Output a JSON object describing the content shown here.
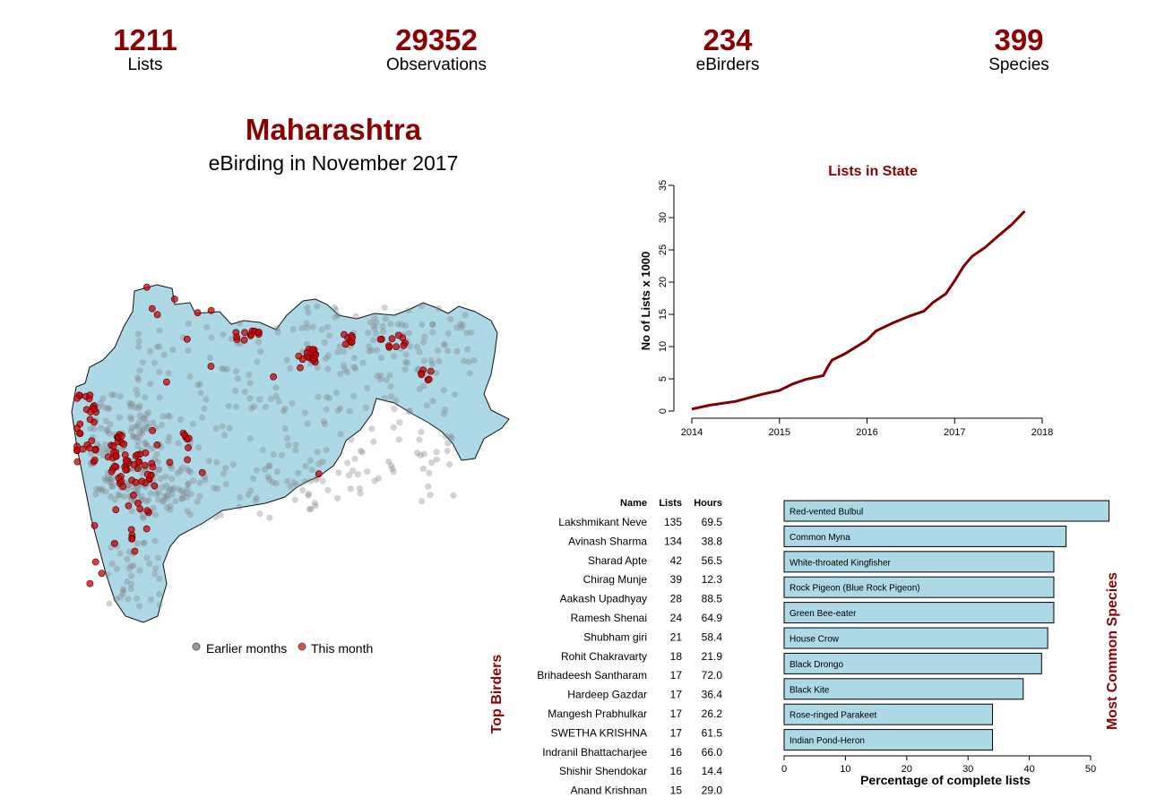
{
  "stats": [
    {
      "value": "1211",
      "label": "Lists"
    },
    {
      "value": "29352",
      "label": "Observations"
    },
    {
      "value": "234",
      "label": "eBirders"
    },
    {
      "value": "399",
      "label": "Species"
    }
  ],
  "title": "Maharashtra",
  "subtitle": "eBirding in November 2017",
  "colors": {
    "accent": "#8b0000",
    "map_fill": "#add8e6",
    "earlier": "#808080",
    "this_month": "#cc0000"
  },
  "map": {
    "legend": [
      {
        "label": "Earlier months",
        "color": "#9a9a9a"
      },
      {
        "label": "This month",
        "color": "#d9534f"
      }
    ]
  },
  "chart_data": [
    {
      "type": "line",
      "title": "Lists in State",
      "xlabel": "",
      "ylabel": "No of Lists x 1000",
      "xlim": [
        2014,
        2018
      ],
      "ylim": [
        0,
        35
      ],
      "xticks": [
        "2014",
        "2015",
        "2016",
        "2017",
        "2018"
      ],
      "yticks": [
        "0",
        "5",
        "10",
        "15",
        "20",
        "25",
        "30",
        "35"
      ],
      "grid": false,
      "series": [
        {
          "x": [
            2014.0,
            2014.2,
            2014.5,
            2014.8,
            2015.0,
            2015.15,
            2015.3,
            2015.5,
            2015.55,
            2015.6,
            2015.75,
            2016.0,
            2016.1,
            2016.3,
            2016.5,
            2016.65,
            2016.75,
            2016.9,
            2017.0,
            2017.1,
            2017.2,
            2017.35,
            2017.5,
            2017.65,
            2017.8
          ],
          "y": [
            0.3,
            0.9,
            1.5,
            2.6,
            3.2,
            4.2,
            4.9,
            5.5,
            6.8,
            7.9,
            8.9,
            11.0,
            12.4,
            13.7,
            14.8,
            15.5,
            16.8,
            18.2,
            20.2,
            22.4,
            24.0,
            25.4,
            27.2,
            28.9,
            31.0
          ]
        }
      ]
    },
    {
      "type": "bar",
      "orientation": "horizontal",
      "title": "Most Common Species",
      "xlabel": "Percentage of complete lists",
      "xlim": [
        0,
        55
      ],
      "xticks": [
        "0",
        "10",
        "20",
        "30",
        "40",
        "50"
      ],
      "categories": [
        "Red-vented Bulbul",
        "Common Myna",
        "White-throated Kingfisher",
        "Rock Pigeon (Blue Rock Pigeon)",
        "Green Bee-eater",
        "House Crow",
        "Black Drongo",
        "Black Kite",
        "Rose-ringed Parakeet",
        "Indian Pond-Heron"
      ],
      "values": [
        53,
        46,
        44,
        44,
        44,
        43,
        42,
        39,
        34,
        34
      ],
      "bar_color": "#add8e6"
    },
    {
      "type": "table",
      "title": "Top Birders",
      "columns": [
        "Name",
        "Lists",
        "Hours"
      ],
      "rows": [
        [
          "Lakshmikant Neve",
          "135",
          "69.5"
        ],
        [
          "Avinash Sharma",
          "134",
          "38.8"
        ],
        [
          "Sharad Apte",
          "42",
          "56.5"
        ],
        [
          "Chirag Munje",
          "39",
          "12.3"
        ],
        [
          "Aakash Upadhyay",
          "28",
          "88.5"
        ],
        [
          "Ramesh Shenai",
          "24",
          "64.9"
        ],
        [
          "Shubham giri",
          "21",
          "58.4"
        ],
        [
          "Rohit Chakravarty",
          "18",
          "21.9"
        ],
        [
          "Brihadeesh Santharam",
          "17",
          "72.0"
        ],
        [
          "Hardeep  Gazdar",
          "17",
          "36.4"
        ],
        [
          "Mangesh Prabhulkar",
          "17",
          "26.2"
        ],
        [
          "SWETHA KRISHNA",
          "17",
          "61.5"
        ],
        [
          "Indranil Bhattacharjee",
          "16",
          "66.0"
        ],
        [
          "Shishir Shendokar",
          "16",
          "14.4"
        ],
        [
          "Anand Krishnan",
          "15",
          "29.0"
        ]
      ]
    }
  ]
}
